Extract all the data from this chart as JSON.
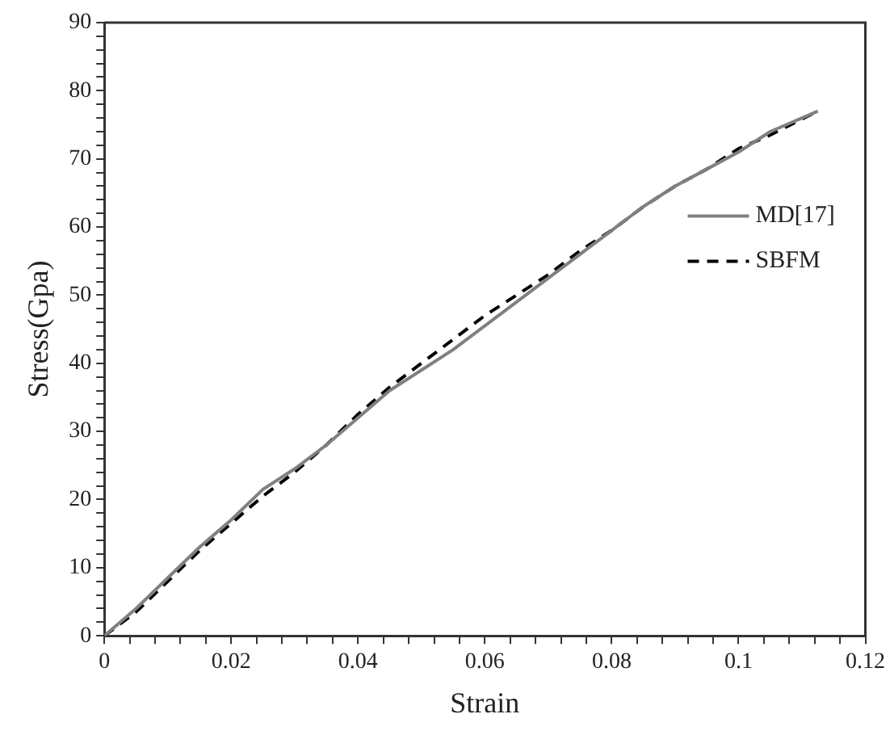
{
  "chart_data": {
    "type": "line",
    "xlabel": "Strain",
    "ylabel": "Stress(Gpa)",
    "x": [
      0,
      0.005,
      0.01,
      0.015,
      0.02,
      0.025,
      0.03,
      0.035,
      0.04,
      0.045,
      0.05,
      0.055,
      0.06,
      0.065,
      0.07,
      0.075,
      0.08,
      0.085,
      0.09,
      0.095,
      0.1,
      0.105,
      0.1125
    ],
    "series": [
      {
        "name": "MD[17]",
        "color": "#808080",
        "line_style": "solid",
        "values": [
          0,
          4,
          8.5,
          13,
          17,
          21.5,
          24.5,
          28,
          32,
          36,
          39,
          42,
          45.5,
          49,
          52.5,
          56,
          59.5,
          63,
          66,
          68.5,
          71,
          74,
          77
        ]
      },
      {
        "name": "SBFM",
        "color": "#000000",
        "line_style": "dashed",
        "values": [
          0,
          3.5,
          8,
          12.5,
          16.5,
          20.5,
          24,
          28,
          32.5,
          36.5,
          40,
          43.5,
          47,
          50,
          53,
          56.5,
          59.5,
          63,
          66,
          68.5,
          71.5,
          73.5,
          77
        ]
      }
    ],
    "xlim": [
      0,
      0.12
    ],
    "xticks": [
      0,
      {
        "value": 0.004,
        "label": null
      },
      {
        "value": 0.008,
        "label": null
      },
      {
        "value": 0.012,
        "label": null
      },
      {
        "value": 0.016,
        "label": null
      },
      0.02,
      {
        "value": 0.024,
        "label": null
      },
      {
        "value": 0.028,
        "label": null
      },
      {
        "value": 0.032,
        "label": null
      },
      {
        "value": 0.036,
        "label": null
      },
      0.04,
      {
        "value": 0.044,
        "label": null
      },
      {
        "value": 0.048,
        "label": null
      },
      {
        "value": 0.052,
        "label": null
      },
      {
        "value": 0.056,
        "label": null
      },
      0.06,
      {
        "value": 0.064,
        "label": null
      },
      {
        "value": 0.068,
        "label": null
      },
      {
        "value": 0.072,
        "label": null
      },
      {
        "value": 0.076,
        "label": null
      },
      0.08,
      {
        "value": 0.084,
        "label": null
      },
      {
        "value": 0.088,
        "label": null
      },
      {
        "value": 0.092,
        "label": null
      },
      {
        "value": 0.096,
        "label": null
      },
      0.1,
      {
        "value": 0.104,
        "label": null
      },
      {
        "value": 0.108,
        "label": null
      },
      {
        "value": 0.112,
        "label": null
      },
      {
        "value": 0.116,
        "label": null
      },
      0.12
    ],
    "ylim": [
      0,
      90
    ],
    "yticks": [
      0,
      {
        "value": 2,
        "label": null
      },
      {
        "value": 4,
        "label": null
      },
      {
        "value": 6,
        "label": null
      },
      {
        "value": 8,
        "label": null
      },
      10,
      {
        "value": 12,
        "label": null
      },
      {
        "value": 14,
        "label": null
      },
      {
        "value": 16,
        "label": null
      },
      {
        "value": 18,
        "label": null
      },
      20,
      {
        "value": 22,
        "label": null
      },
      {
        "value": 24,
        "label": null
      },
      {
        "value": 26,
        "label": null
      },
      {
        "value": 28,
        "label": null
      },
      30,
      {
        "value": 32,
        "label": null
      },
      {
        "value": 34,
        "label": null
      },
      {
        "value": 36,
        "label": null
      },
      {
        "value": 38,
        "label": null
      },
      40,
      {
        "value": 42,
        "label": null
      },
      {
        "value": 44,
        "label": null
      },
      {
        "value": 46,
        "label": null
      },
      {
        "value": 48,
        "label": null
      },
      50,
      {
        "value": 52,
        "label": null
      },
      {
        "value": 54,
        "label": null
      },
      {
        "value": 56,
        "label": null
      },
      {
        "value": 58,
        "label": null
      },
      60,
      {
        "value": 62,
        "label": null
      },
      {
        "value": 64,
        "label": null
      },
      {
        "value": 66,
        "label": null
      },
      {
        "value": 68,
        "label": null
      },
      70,
      {
        "value": 72,
        "label": null
      },
      {
        "value": 74,
        "label": null
      },
      {
        "value": 76,
        "label": null
      },
      {
        "value": 78,
        "label": null
      },
      80,
      {
        "value": 82,
        "label": null
      },
      {
        "value": 84,
        "label": null
      },
      {
        "value": 86,
        "label": null
      },
      {
        "value": 88,
        "label": null
      },
      90
    ],
    "grid": false,
    "legend": "right",
    "marker": "none"
  }
}
